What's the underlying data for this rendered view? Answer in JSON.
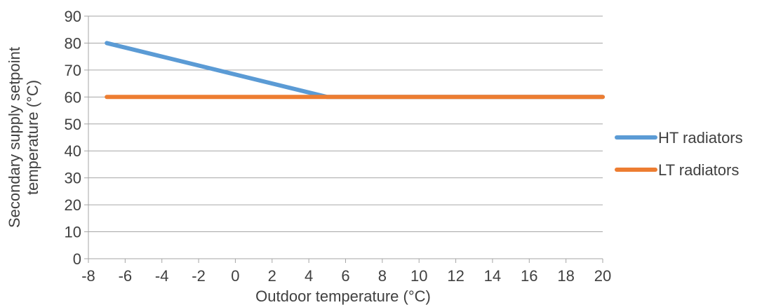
{
  "chart_data": {
    "type": "line",
    "xlabel": "Outdoor temperature (°C)",
    "ylabel_line1": "Secondary supply setpoint",
    "ylabel_line2": "temperature (°C)",
    "xlim": [
      -8,
      20
    ],
    "ylim": [
      0,
      90
    ],
    "x_ticks": [
      "-8",
      "-6",
      "-4",
      "-2",
      "0",
      "2",
      "4",
      "6",
      "8",
      "10",
      "12",
      "14",
      "16",
      "18",
      "20"
    ],
    "y_ticks": [
      "0",
      "10",
      "20",
      "30",
      "40",
      "50",
      "60",
      "70",
      "80",
      "90"
    ],
    "grid": "horizontal",
    "legend_position": "right",
    "series": [
      {
        "name": "HT radiators",
        "color": "#5B9BD5",
        "x": [
          -7,
          5,
          20
        ],
        "y": [
          80,
          60,
          60
        ]
      },
      {
        "name": "LT radiators",
        "color": "#ED7D31",
        "x": [
          -7,
          20
        ],
        "y": [
          60,
          60
        ]
      }
    ]
  }
}
